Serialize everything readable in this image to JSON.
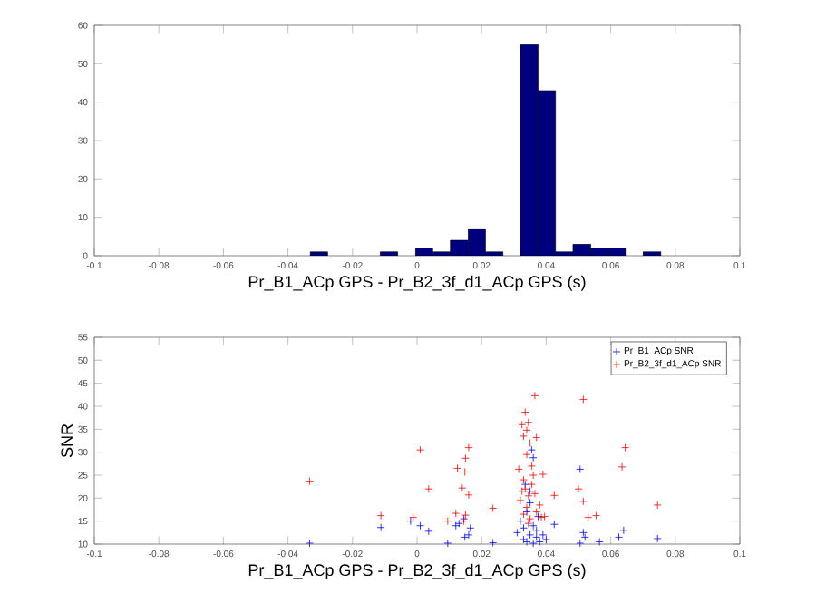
{
  "chart_data": [
    {
      "type": "histogram",
      "xlabel": "Pr_B1_ACp GPS - Pr_B2_3f_d1_ACp GPS (s)",
      "bins": [
        -0.0331,
        -0.0277,
        -0.0223,
        -0.0168,
        -0.0114,
        -0.006,
        -0.0005,
        0.0049,
        0.0103,
        0.0158,
        0.0212,
        0.0266,
        0.032,
        0.0375,
        0.0429,
        0.0483,
        0.0538,
        0.0592,
        0.0646,
        0.07,
        0.0755
      ],
      "values": [
        1,
        0,
        0,
        0,
        1,
        0,
        2,
        1,
        4,
        7,
        1,
        0,
        55,
        43,
        1,
        3,
        2,
        2,
        0,
        1
      ],
      "color": "#00007f",
      "xlim": [
        -0.1,
        0.1
      ],
      "xticks": [
        -0.1,
        -0.08,
        -0.06,
        -0.04,
        -0.02,
        0,
        0.02,
        0.04,
        0.06,
        0.08,
        0.1
      ],
      "ylim": [
        0,
        60
      ],
      "yticks": [
        0,
        10,
        20,
        30,
        40,
        50,
        60
      ],
      "grid": false
    },
    {
      "type": "scatter",
      "xlabel": "Pr_B1_ACp GPS - Pr_B2_3f_d1_ACp GPS (s)",
      "ylabel": "SNR",
      "xlim": [
        -0.1,
        0.1
      ],
      "xticks": [
        -0.1,
        -0.08,
        -0.06,
        -0.04,
        -0.02,
        0,
        0.02,
        0.04,
        0.06,
        0.08,
        0.1
      ],
      "ylim": [
        10,
        55
      ],
      "yticks": [
        10,
        15,
        20,
        25,
        30,
        35,
        40,
        45,
        50,
        55
      ],
      "grid": false,
      "legend": "top right",
      "marker": "cross",
      "series": [
        {
          "name": "Pr_B1_ACp SNR",
          "color": "#0000ff",
          "x": [
            -0.0333,
            -0.0112,
            -0.002,
            0.001,
            0.0036,
            0.0095,
            0.012,
            0.013,
            0.0145,
            0.0148,
            0.016,
            0.0165,
            0.0235,
            0.031,
            0.032,
            0.033,
            0.033,
            0.034,
            0.034,
            0.035,
            0.035,
            0.0355,
            0.036,
            0.036,
            0.036,
            0.037,
            0.037,
            0.0375,
            0.038,
            0.039,
            0.04,
            0.0425,
            0.0335,
            0.035,
            0.0505,
            0.0515,
            0.052,
            0.0505,
            0.0565,
            0.0625,
            0.064,
            0.0745
          ],
          "values": [
            10.2,
            13.6,
            15,
            14,
            12.8,
            10.2,
            14,
            14.5,
            15.5,
            11.5,
            12,
            13.5,
            10.3,
            12.5,
            15,
            11,
            13.5,
            10.5,
            17,
            12,
            19,
            30.5,
            28.8,
            14,
            10.2,
            11.5,
            13,
            16,
            10.5,
            12,
            11,
            14.3,
            23,
            21.5,
            26.3,
            12.5,
            11.5,
            10.2,
            10.5,
            11.5,
            13,
            11.2
          ]
        },
        {
          "name": "Pr_B2_3f_d1_ACp SNR",
          "color": "#ff0000",
          "x": [
            -0.0333,
            -0.0112,
            -0.0012,
            0.001,
            0.0036,
            0.0095,
            0.0125,
            0.012,
            0.014,
            0.0148,
            0.015,
            0.016,
            0.016,
            0.015,
            0.0145,
            0.0235,
            0.0315,
            0.0325,
            0.0335,
            0.033,
            0.0345,
            0.034,
            0.035,
            0.0365,
            0.037,
            0.034,
            0.0355,
            0.033,
            0.0335,
            0.0325,
            0.032,
            0.0345,
            0.0355,
            0.036,
            0.034,
            0.033,
            0.035,
            0.037,
            0.038,
            0.0385,
            0.0395,
            0.039,
            0.0425,
            0.0345,
            0.0365,
            0.05,
            0.0515,
            0.0515,
            0.053,
            0.0555,
            0.0635,
            0.0645,
            0.0745
          ],
          "values": [
            23.7,
            16.2,
            15.8,
            30.5,
            22,
            15,
            26.5,
            16.7,
            22.2,
            25.7,
            28.7,
            31,
            20.7,
            16.3,
            15,
            17.8,
            26.3,
            36,
            38.7,
            33.5,
            36.5,
            34.8,
            32,
            42.3,
            33.2,
            29.5,
            27,
            24,
            22,
            21.5,
            19.5,
            20.5,
            23,
            25,
            18,
            16.5,
            15.5,
            17,
            18.5,
            15.8,
            16,
            25.2,
            20.6,
            14.5,
            21,
            22,
            41.5,
            19.3,
            15.8,
            16.2,
            26.8,
            31,
            18.5
          ]
        }
      ]
    }
  ]
}
